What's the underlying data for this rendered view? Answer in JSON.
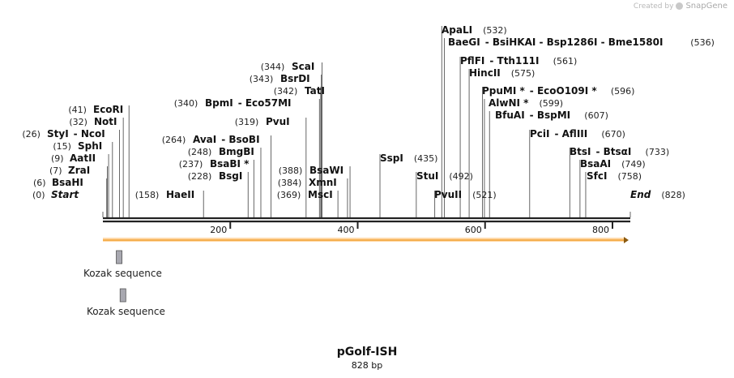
{
  "credit": {
    "prefix": "Created by",
    "brand": "SnapGene"
  },
  "plasmid": {
    "name": "pGolf-ISH",
    "length_label": "828 bp",
    "length": 828
  },
  "axis": {
    "ticks": [
      200,
      400,
      600,
      800
    ]
  },
  "sites": [
    {
      "name": "Start",
      "pos_label": "(0)",
      "pos": 0,
      "italic": true
    },
    {
      "name": "BsaHI",
      "pos_label": "(6)",
      "pos": 6
    },
    {
      "name": "ZraI",
      "pos_label": "(7)",
      "pos": 7
    },
    {
      "name": "AatII",
      "pos_label": "(9)",
      "pos": 9
    },
    {
      "name": "SphI",
      "pos_label": "(15)",
      "pos": 15
    },
    {
      "name": "StyI",
      "pos_label": "(26)",
      "pos": 26,
      "extra": "NcoI"
    },
    {
      "name": "NotI",
      "pos_label": "(32)",
      "pos": 32
    },
    {
      "name": "EcoRI",
      "pos_label": "(41)",
      "pos": 41
    },
    {
      "name": "HaeII",
      "pos_label": "(158)",
      "pos": 158
    },
    {
      "name": "BsgI",
      "pos_label": "(228)",
      "pos": 228
    },
    {
      "name": "BsaBI *",
      "pos_label": "(237)",
      "pos": 237
    },
    {
      "name": "BmgBI",
      "pos_label": "(248)",
      "pos": 248
    },
    {
      "name": "AvaI",
      "pos_label": "(264)",
      "pos": 264,
      "extra": "BsoBI"
    },
    {
      "name": "PvuI",
      "pos_label": "(319)",
      "pos": 319
    },
    {
      "name": "BpmI",
      "pos_label": "(340)",
      "pos": 340,
      "extra": "Eco57MI"
    },
    {
      "name": "TatI",
      "pos_label": "(342)",
      "pos": 342
    },
    {
      "name": "BsrDI",
      "pos_label": "(343)",
      "pos": 343
    },
    {
      "name": "ScaI",
      "pos_label": "(344)",
      "pos": 344
    },
    {
      "name": "BsaWI",
      "pos_label": "(388)",
      "pos": 388
    },
    {
      "name": "XmnI",
      "pos_label": "(384)",
      "pos": 384
    },
    {
      "name": "MscI",
      "pos_label": "(369)",
      "pos": 369
    },
    {
      "name": "SspI",
      "pos_label": "(435)",
      "pos": 435
    },
    {
      "name": "StuI",
      "pos_label": "(492)",
      "pos": 492
    },
    {
      "name": "PvuII",
      "pos_label": "(521)",
      "pos": 521
    },
    {
      "name": "ApaLI",
      "pos_label": "(532)",
      "pos": 532
    },
    {
      "name": "BaeGI",
      "pos_label": "(536)",
      "pos": 536,
      "extra": "BsiHKAI  -  Bsp1286I  -  Bme1580I"
    },
    {
      "name": "PflFI",
      "pos_label": "(561)",
      "pos": 561,
      "extra": "Tth111I"
    },
    {
      "name": "HincII",
      "pos_label": "(575)",
      "pos": 575
    },
    {
      "name": "PpuMI *",
      "pos_label": "(596)",
      "pos": 596,
      "extra": "EcoO109I *"
    },
    {
      "name": "AlwNI *",
      "pos_label": "(599)",
      "pos": 599
    },
    {
      "name": "BfuAI",
      "pos_label": "(607)",
      "pos": 607,
      "extra": "BspMI"
    },
    {
      "name": "PciI",
      "pos_label": "(670)",
      "pos": 670,
      "extra": "AflIII"
    },
    {
      "name": "BtsI",
      "pos_label": "(733)",
      "pos": 733,
      "extra": "BtsαI"
    },
    {
      "name": "BsaAI",
      "pos_label": "(749)",
      "pos": 749
    },
    {
      "name": "SfcI",
      "pos_label": "(758)",
      "pos": 758
    },
    {
      "name": "End",
      "pos_label": "(828)",
      "pos": 828,
      "italic": true
    }
  ],
  "features": [
    {
      "name": "Kozak sequence",
      "start": 21,
      "end": 30
    },
    {
      "name": "Kozak sequence",
      "start": 27,
      "end": 36
    }
  ],
  "orf": {
    "start": 0,
    "end": 828,
    "direction": "forward"
  },
  "colors": {
    "orf_fill": "#ffd9a8",
    "orf_stroke": "#f0a030",
    "feature_fill": "#a8a8b0",
    "backbone": "#222222"
  }
}
